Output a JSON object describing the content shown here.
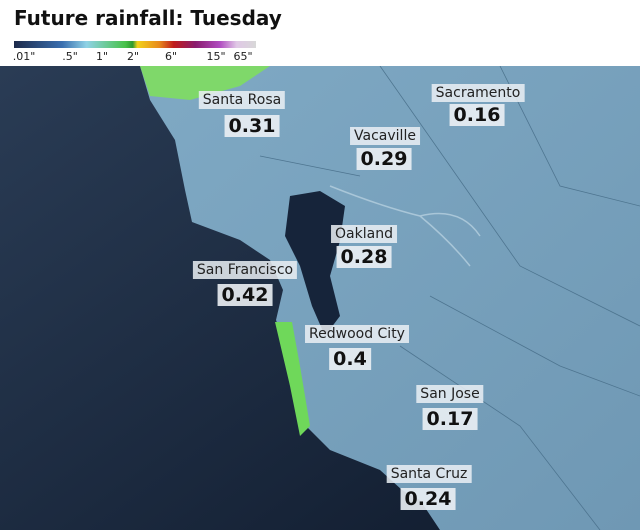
{
  "header": {
    "title": "Future rainfall: Tuesday"
  },
  "legend": {
    "labels": [
      ".01\"",
      ".5\"",
      "1\"",
      "2\"",
      "6\"",
      "15\"",
      "65\""
    ]
  },
  "cities": [
    {
      "name": "Santa Rosa",
      "value": "0.31"
    },
    {
      "name": "Sacramento",
      "value": "0.16"
    },
    {
      "name": "Vacaville",
      "value": "0.29"
    },
    {
      "name": "Oakland",
      "value": "0.28"
    },
    {
      "name": "San Francisco",
      "value": "0.42"
    },
    {
      "name": "Redwood City",
      "value": "0.4"
    },
    {
      "name": "San Jose",
      "value": "0.17"
    },
    {
      "name": "Santa Cruz",
      "value": "0.24"
    }
  ]
}
